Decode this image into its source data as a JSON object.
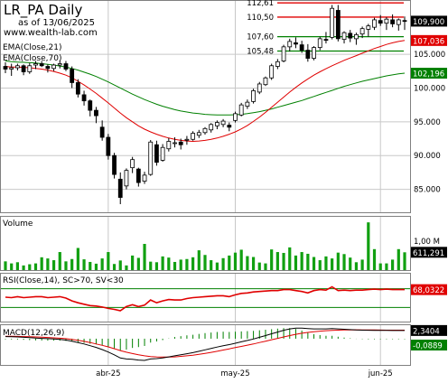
{
  "header": {
    "title": "LR_PA Daily",
    "date": "as of 13/06/2025",
    "site": "www.wealth-lab.com"
  },
  "chart_data": [
    {
      "type": "candlestick",
      "title": "LR_PA Daily",
      "legend": [
        "EMA(Close,21)",
        "EMA(Close,70)"
      ],
      "x_ticks": [
        "abr-25",
        "may-25",
        "jun-25"
      ],
      "y_ticks": [
        85000,
        90000,
        95000,
        100000,
        105000
      ],
      "ylim": [
        82000,
        112500
      ],
      "level_labels": [
        "112,61",
        "110,50",
        "107,60",
        "105,48"
      ],
      "levels": [
        112.61,
        110.5,
        107.6,
        105.48
      ],
      "last_labels": {
        "close": "109,900",
        "ema21": "107,036",
        "ema70": "102,196"
      },
      "last_values": {
        "close": 109.9,
        "ema21": 107.036,
        "ema70": 102.196
      },
      "candles": [
        [
          103.2,
          103.8,
          102.2,
          102.8
        ],
        [
          102.8,
          103.6,
          101.8,
          103.0
        ],
        [
          103.0,
          103.6,
          102.6,
          103.3
        ],
        [
          103.3,
          103.5,
          101.9,
          102.4
        ],
        [
          102.4,
          103.7,
          102.1,
          103.3
        ],
        [
          103.4,
          104.0,
          102.8,
          103.6
        ],
        [
          103.6,
          104.0,
          103.1,
          103.3
        ],
        [
          103.2,
          103.5,
          102.3,
          102.9
        ],
        [
          102.9,
          103.6,
          102.5,
          103.4
        ],
        [
          103.4,
          104.1,
          102.9,
          103.6
        ],
        [
          103.6,
          104.0,
          102.5,
          102.8
        ],
        [
          102.8,
          103.2,
          100.0,
          100.8
        ],
        [
          100.8,
          101.3,
          98.6,
          99.1
        ],
        [
          99.0,
          99.6,
          97.4,
          98.1
        ],
        [
          98.1,
          98.3,
          95.8,
          96.7
        ],
        [
          96.7,
          97.2,
          94.8,
          95.9
        ],
        [
          94.2,
          95.2,
          92.2,
          92.7
        ],
        [
          92.7,
          93.2,
          89.4,
          90.0
        ],
        [
          90.0,
          90.4,
          86.6,
          87.2
        ],
        [
          86.5,
          87.5,
          82.8,
          83.8
        ],
        [
          85.5,
          88.1,
          85.0,
          87.8
        ],
        [
          88.2,
          89.8,
          87.4,
          89.4
        ],
        [
          88.0,
          88.2,
          85.4,
          86.0
        ],
        [
          86.2,
          87.6,
          85.8,
          87.1
        ],
        [
          87.2,
          92.3,
          87.0,
          92.0
        ],
        [
          91.6,
          92.2,
          88.5,
          89.0
        ],
        [
          89.3,
          91.7,
          89.1,
          91.2
        ],
        [
          91.0,
          92.6,
          90.6,
          92.1
        ],
        [
          91.9,
          92.7,
          91.2,
          91.9
        ],
        [
          92.0,
          92.5,
          90.9,
          91.6
        ],
        [
          92.3,
          92.9,
          91.6,
          92.4
        ],
        [
          92.4,
          93.6,
          92.2,
          93.3
        ],
        [
          93.0,
          93.8,
          92.6,
          93.4
        ],
        [
          93.4,
          94.2,
          93.1,
          94.0
        ],
        [
          93.8,
          94.8,
          93.4,
          94.6
        ],
        [
          94.4,
          95.2,
          93.9,
          94.9
        ],
        [
          94.6,
          95.4,
          94.2,
          95.1
        ],
        [
          94.5,
          94.9,
          93.6,
          94.2
        ],
        [
          95.2,
          96.5,
          94.9,
          96.2
        ],
        [
          96.0,
          97.8,
          95.8,
          97.5
        ],
        [
          97.3,
          98.3,
          96.9,
          97.9
        ],
        [
          98.0,
          99.9,
          97.7,
          99.6
        ],
        [
          99.4,
          100.9,
          99.1,
          100.6
        ],
        [
          100.5,
          101.7,
          100.3,
          101.5
        ],
        [
          101.5,
          103.6,
          101.2,
          103.3
        ],
        [
          103.2,
          104.3,
          102.8,
          103.9
        ],
        [
          104.0,
          106.4,
          103.8,
          106.1
        ],
        [
          106.1,
          107.3,
          105.4,
          106.9
        ],
        [
          106.7,
          107.5,
          105.9,
          106.5
        ],
        [
          106.4,
          107.0,
          105.2,
          105.6
        ],
        [
          105.6,
          106.5,
          103.9,
          104.4
        ],
        [
          104.4,
          106.2,
          104.1,
          106.0
        ],
        [
          106.0,
          107.6,
          105.6,
          107.3
        ],
        [
          107.2,
          108.3,
          106.6,
          107.1
        ],
        [
          107.5,
          112.3,
          107.2,
          111.8
        ],
        [
          111.5,
          112.3,
          106.9,
          107.3
        ],
        [
          107.2,
          108.4,
          106.6,
          108.2
        ],
        [
          108.1,
          108.6,
          106.8,
          107.4
        ],
        [
          107.3,
          108.2,
          106.4,
          107.9
        ],
        [
          108.0,
          109.1,
          107.4,
          108.8
        ],
        [
          108.7,
          109.5,
          107.6,
          109.2
        ],
        [
          109.0,
          110.4,
          108.6,
          110.1
        ],
        [
          110.0,
          110.8,
          109.2,
          109.6
        ],
        [
          109.6,
          110.5,
          108.6,
          110.2
        ],
        [
          110.1,
          110.9,
          109.0,
          109.5
        ],
        [
          109.4,
          110.3,
          108.5,
          110.1
        ],
        [
          110.0,
          110.6,
          108.6,
          109.9
        ]
      ],
      "ema21": [
        103.2,
        103.1,
        103.1,
        103.05,
        103.0,
        102.9,
        102.8,
        102.65,
        102.45,
        102.2,
        101.9,
        101.5,
        101.0,
        100.45,
        99.85,
        99.2,
        98.5,
        97.8,
        97.05,
        96.3,
        95.6,
        95.0,
        94.4,
        93.9,
        93.5,
        93.15,
        92.85,
        92.6,
        92.4,
        92.25,
        92.15,
        92.1,
        92.15,
        92.25,
        92.4,
        92.6,
        92.85,
        93.15,
        93.5,
        93.95,
        94.45,
        95.05,
        95.7,
        96.4,
        97.15,
        97.9,
        98.65,
        99.4,
        100.1,
        100.75,
        101.35,
        101.9,
        102.4,
        102.85,
        103.3,
        103.7,
        104.1,
        104.45,
        104.8,
        105.15,
        105.5,
        105.85,
        106.15,
        106.45,
        106.7,
        106.9,
        107.04
      ],
      "ema70": [
        104.0,
        103.9,
        103.85,
        103.8,
        103.75,
        103.7,
        103.6,
        103.5,
        103.4,
        103.25,
        103.1,
        102.9,
        102.65,
        102.35,
        102.05,
        101.7,
        101.3,
        100.9,
        100.45,
        100.0,
        99.55,
        99.1,
        98.7,
        98.3,
        97.95,
        97.6,
        97.3,
        97.05,
        96.8,
        96.6,
        96.45,
        96.3,
        96.2,
        96.1,
        96.05,
        96.0,
        96.0,
        96.0,
        96.05,
        96.1,
        96.2,
        96.35,
        96.5,
        96.7,
        96.9,
        97.15,
        97.4,
        97.65,
        97.9,
        98.15,
        98.45,
        98.75,
        99.05,
        99.35,
        99.65,
        99.95,
        100.25,
        100.5,
        100.75,
        101.0,
        101.2,
        101.4,
        101.6,
        101.8,
        101.95,
        102.1,
        102.2
      ]
    },
    {
      "type": "bar",
      "title": "Volume",
      "y_tick_label": "1,00 M",
      "y_tick_value": 1000000,
      "last_label": "611,291",
      "ylim": [
        0,
        1800000
      ],
      "values": [
        300000,
        230000,
        270000,
        160000,
        200000,
        230000,
        440000,
        400000,
        340000,
        620000,
        300000,
        380000,
        760000,
        370000,
        280000,
        220000,
        400000,
        620000,
        210000,
        330000,
        160000,
        500000,
        420000,
        900000,
        290000,
        270000,
        470000,
        430000,
        280000,
        360000,
        380000,
        440000,
        680000,
        520000,
        340000,
        260000,
        410000,
        500000,
        600000,
        700000,
        480000,
        450000,
        260000,
        230000,
        710000,
        620000,
        590000,
        780000,
        500000,
        620000,
        560000,
        450000,
        340000,
        470000,
        400000,
        600000,
        550000,
        430000,
        270000,
        360000,
        1640000,
        720000,
        230000,
        230000,
        360000,
        720000,
        611291
      ]
    },
    {
      "type": "line",
      "title": "RSI(Close,14), SC>70, SV<30",
      "last_label": "68,0322",
      "ylim": [
        0,
        100
      ],
      "thresholds": [
        70,
        30
      ],
      "values": [
        52,
        51,
        53,
        51,
        52,
        53,
        53,
        51,
        52,
        53,
        50,
        44,
        40,
        37,
        34,
        33,
        31,
        28,
        26,
        23,
        32,
        36,
        32,
        35,
        46,
        40,
        44,
        47,
        46,
        46,
        49,
        51,
        52,
        53,
        54,
        55,
        55,
        53,
        57,
        60,
        61,
        63,
        64,
        65,
        66,
        66,
        68,
        68,
        66,
        64,
        61,
        66,
        68,
        67,
        74,
        66,
        67,
        66,
        67,
        67,
        68,
        69,
        68,
        69,
        68,
        68,
        68
      ]
    },
    {
      "type": "line",
      "title": "MACD(12,26,9)",
      "last_labels": [
        "2,3404",
        "-0,0889"
      ],
      "last_values": [
        2.3404,
        -0.0889
      ],
      "ylim": [
        -7.5,
        3.6
      ],
      "macd": [
        0.6,
        0.55,
        0.5,
        0.4,
        0.3,
        0.2,
        0.1,
        0.0,
        -0.1,
        -0.2,
        -0.4,
        -0.7,
        -1.1,
        -1.5,
        -2.0,
        -2.5,
        -3.1,
        -3.8,
        -4.6,
        -5.5,
        -5.8,
        -5.9,
        -6.1,
        -6.2,
        -5.8,
        -5.7,
        -5.5,
        -5.2,
        -4.9,
        -4.6,
        -4.3,
        -4.0,
        -3.6,
        -3.2,
        -2.8,
        -2.4,
        -2.0,
        -1.7,
        -1.3,
        -0.9,
        -0.5,
        -0.1,
        0.4,
        0.9,
        1.4,
        1.9,
        2.4,
        2.8,
        3.0,
        3.0,
        2.9,
        2.8,
        2.8,
        2.8,
        2.9,
        2.8,
        2.7,
        2.6,
        2.5,
        2.45,
        2.4,
        2.38,
        2.36,
        2.35,
        2.34,
        2.34,
        2.3404
      ],
      "signal": [
        0.7,
        0.68,
        0.65,
        0.6,
        0.55,
        0.5,
        0.42,
        0.35,
        0.25,
        0.15,
        0.0,
        -0.2,
        -0.45,
        -0.75,
        -1.1,
        -1.5,
        -1.9,
        -2.35,
        -2.85,
        -3.4,
        -3.85,
        -4.25,
        -4.6,
        -4.9,
        -5.1,
        -5.2,
        -5.25,
        -5.25,
        -5.2,
        -5.05,
        -4.9,
        -4.7,
        -4.45,
        -4.2,
        -3.9,
        -3.6,
        -3.25,
        -2.9,
        -2.55,
        -2.2,
        -1.85,
        -1.5,
        -1.1,
        -0.7,
        -0.3,
        0.1,
        0.5,
        0.9,
        1.25,
        1.55,
        1.8,
        2.0,
        2.15,
        2.28,
        2.38,
        2.45,
        2.5,
        2.52,
        2.53,
        2.52,
        2.5,
        2.48,
        2.46,
        2.44,
        2.43,
        2.43,
        2.4293
      ],
      "hist": [
        -0.1,
        -0.13,
        -0.15,
        -0.2,
        -0.25,
        -0.3,
        -0.32,
        -0.35,
        -0.35,
        -0.35,
        -0.4,
        -0.5,
        -0.65,
        -0.75,
        -0.9,
        -1.0,
        -1.2,
        -1.45,
        -1.75,
        -2.1,
        -1.95,
        -1.65,
        -1.5,
        -1.3,
        -0.7,
        -0.5,
        -0.25,
        0.05,
        0.3,
        0.45,
        0.6,
        0.7,
        0.85,
        1.0,
        1.1,
        1.2,
        1.25,
        1.2,
        1.25,
        1.3,
        1.35,
        1.4,
        1.5,
        1.6,
        1.7,
        1.8,
        1.9,
        1.9,
        1.75,
        1.45,
        1.1,
        0.8,
        0.65,
        0.52,
        0.52,
        0.35,
        0.2,
        0.08,
        -0.03,
        -0.07,
        -0.1,
        -0.1,
        -0.1,
        -0.09,
        -0.09,
        -0.09,
        -0.0889
      ]
    }
  ],
  "colors": {
    "up_fill": "#ffffff",
    "down_fill": "#000000",
    "ema21": "#e00000",
    "ema70": "#008000",
    "level_red": "#e00000",
    "level_green": "#008000",
    "volume": "#11a011",
    "rsi": "#e00000",
    "rsi_zone": "#008000",
    "macd": "#000000",
    "signal": "#e00000",
    "hist": "#008000",
    "tag_black": "#000000",
    "tag_red": "#e00000",
    "tag_green": "#008000"
  }
}
